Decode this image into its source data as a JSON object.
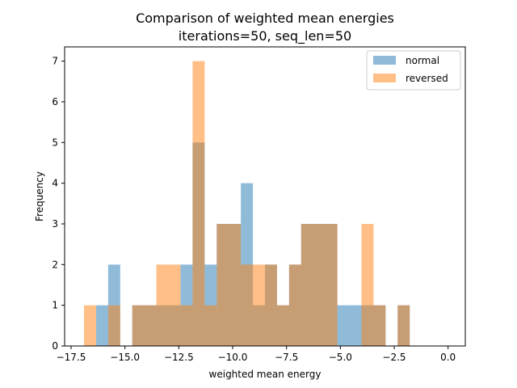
{
  "chart_data": {
    "type": "histogram",
    "title": "Comparison of weighted mean energies",
    "subtitle": "iterations=50, seq_len=50",
    "xlabel": "weighted mean energy",
    "ylabel": "Frequency",
    "xlim": [
      -17.8,
      0.8
    ],
    "ylim": [
      0,
      7.35
    ],
    "xticks": [
      -17.5,
      -15.0,
      -12.5,
      -10.0,
      -7.5,
      -5.0,
      -2.5,
      0.0
    ],
    "xtick_labels": [
      "−17.5",
      "−15.0",
      "−12.5",
      "−10.0",
      "−7.5",
      "−5.0",
      "−2.5",
      "0.0"
    ],
    "yticks": [
      0,
      1,
      2,
      3,
      4,
      5,
      6,
      7
    ],
    "ytick_labels": [
      "0",
      "1",
      "2",
      "3",
      "4",
      "5",
      "6",
      "7"
    ],
    "grid": false,
    "legend": {
      "placement": "top-right"
    },
    "bin_edges": [
      -16.9,
      -16.34,
      -15.78,
      -15.22,
      -14.66,
      -14.1,
      -13.54,
      -12.98,
      -12.42,
      -11.86,
      -11.3,
      -10.74,
      -10.18,
      -9.62,
      -9.06,
      -8.5,
      -7.94,
      -7.38,
      -6.82,
      -6.26,
      -5.7,
      -5.14,
      -4.58,
      -4.02,
      -3.46,
      -2.9,
      -2.34,
      -1.78,
      -1.22,
      -0.66,
      -0.1
    ],
    "series": [
      {
        "name": "normal",
        "color": "#1f77b4",
        "alpha": 0.5,
        "counts": [
          0,
          1,
          2,
          0,
          1,
          1,
          1,
          1,
          2,
          5,
          2,
          3,
          3,
          4,
          1,
          2,
          1,
          2,
          3,
          3,
          3,
          1,
          1,
          1,
          1,
          0,
          1,
          0,
          0,
          0
        ]
      },
      {
        "name": "reversed",
        "color": "#ff7f0e",
        "alpha": 0.5,
        "counts": [
          1,
          0,
          1,
          0,
          1,
          1,
          2,
          2,
          1,
          7,
          1,
          3,
          3,
          2,
          2,
          2,
          1,
          2,
          3,
          3,
          3,
          0,
          0,
          3,
          1,
          0,
          1,
          0,
          0,
          0
        ]
      }
    ]
  }
}
